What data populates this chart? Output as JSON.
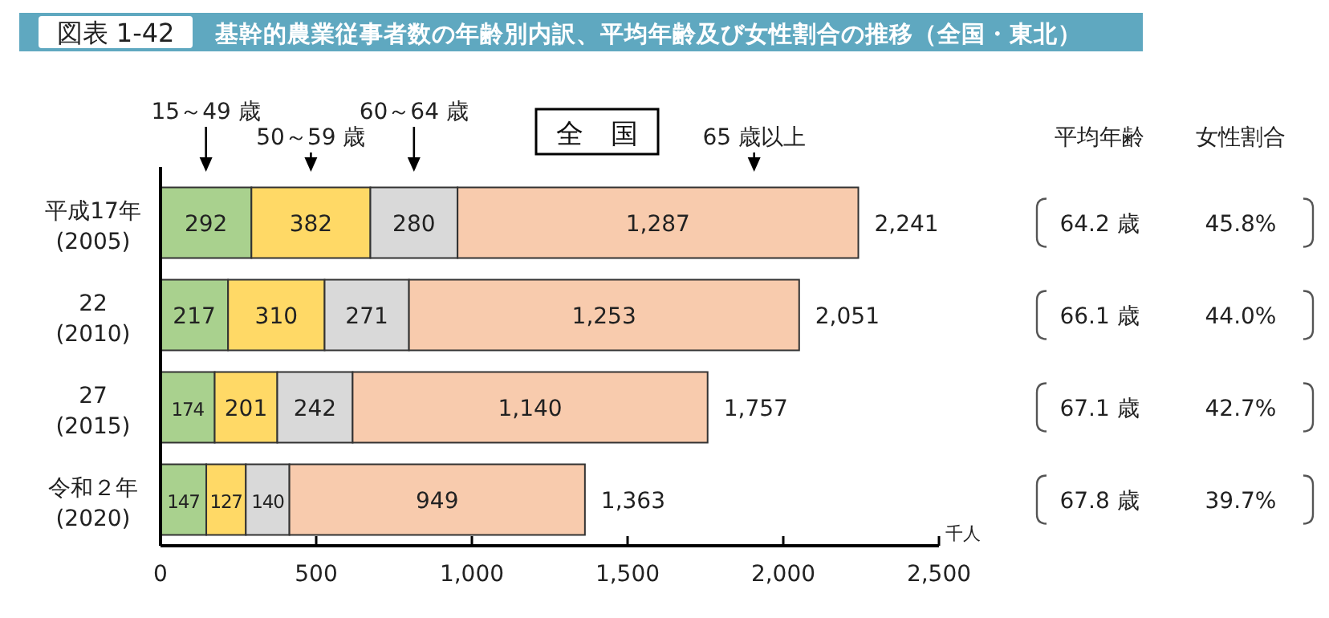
{
  "chart_data": [
    {
      "type": "bar",
      "orientation": "horizontal",
      "stacked": true,
      "title": "図表 1-42",
      "subtitle": "基幹的農業従事者数の年齢別内訳、平均年齢及び女性割合の推移（全国・東北）",
      "annotations": [
        "全　国"
      ],
      "xlabel": "千人",
      "legend": "top",
      "categories": [
        "平成17年\n(2005)",
        "22\n(2010)",
        "27\n(2015)",
        "令和２年\n(2020)"
      ],
      "series": [
        {
          "name": "15～49 歳",
          "color": "#a9d18e",
          "values": [
            292,
            217,
            174,
            147
          ],
          "value_labels": [
            "292",
            "217",
            "174",
            "147"
          ]
        },
        {
          "name": "50～59 歳",
          "color": "#ffd966",
          "values": [
            382,
            310,
            201,
            127
          ],
          "value_labels": [
            "382",
            "310",
            "201",
            "127"
          ]
        },
        {
          "name": "60～64 歳",
          "color": "#d9d9d9",
          "values": [
            280,
            271,
            242,
            140
          ],
          "value_labels": [
            "280",
            "271",
            "242",
            "140"
          ]
        },
        {
          "name": "65 歳以上",
          "color": "#f8cbad",
          "values": [
            1287,
            1253,
            1140,
            949
          ],
          "value_labels": [
            "1,287",
            "1,253",
            "1,140",
            "949"
          ]
        }
      ],
      "totals": [
        "2,241",
        "2,051",
        "1,757",
        "1,363"
      ],
      "xlim": [
        0,
        2500
      ],
      "xticks": [
        0,
        500,
        {
          "value": 1000,
          "label": "1,000"
        },
        {
          "value": 1500,
          "label": "1,500"
        },
        {
          "value": 2000,
          "label": "2,000"
        },
        {
          "value": 2500,
          "label": "2,500"
        }
      ]
    },
    {
      "type": "other",
      "annotations": [
        "平均年齢",
        "女性割合",
        "64.2 歳",
        "45.8%",
        "66.1 歳",
        "44.0%",
        "67.1 歳",
        "42.7%",
        "67.8 歳",
        "39.7%"
      ]
    }
  ]
}
